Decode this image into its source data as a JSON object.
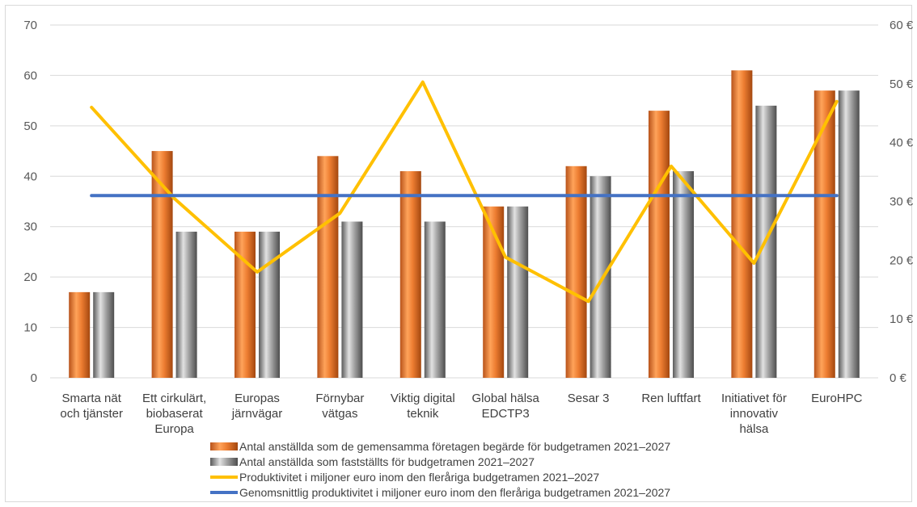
{
  "chart_data": {
    "type": "bar",
    "categories": [
      [
        "Smarta nät",
        "och tjänster"
      ],
      [
        "Ett cirkulärt,",
        "biobaserat",
        "Europa"
      ],
      [
        "Europas",
        "järnvägar"
      ],
      [
        "Förnybar",
        "vätgas"
      ],
      [
        "Viktig digital",
        "teknik"
      ],
      [
        "Global hälsa",
        "EDCTP3"
      ],
      [
        "Sesar 3"
      ],
      [
        "Ren luftfart"
      ],
      [
        "Initiativet för",
        "innovativ",
        "hälsa"
      ],
      [
        "EuroHPC"
      ]
    ],
    "series": [
      {
        "name": "Antal anställda som de gemensamma företagen begärde för budgetramen 2021–2027",
        "type": "bar",
        "axis": "left",
        "color": "#ed7d31",
        "values": [
          17,
          45,
          29,
          44,
          41,
          34,
          42,
          53,
          61,
          57
        ]
      },
      {
        "name": "Antal anställda som fastställts för budgetramen 2021–2027",
        "type": "bar",
        "axis": "left",
        "color": "#a5a5a5",
        "values": [
          17,
          29,
          29,
          31,
          31,
          34,
          40,
          41,
          54,
          57
        ]
      },
      {
        "name": "Produktivitet i miljoner euro inom den fleråriga budgetramen 2021–2027",
        "type": "line",
        "axis": "right",
        "color": "#ffc000",
        "values": [
          46,
          30.5,
          18,
          28,
          50.3,
          20.5,
          13,
          36,
          19.5,
          47
        ]
      },
      {
        "name": "Genomsnittlig produktivitet i miljoner euro inom den fleråriga budgetramen 2021–2027",
        "type": "line",
        "axis": "right",
        "color": "#4472c4",
        "values": [
          31,
          31,
          31,
          31,
          31,
          31,
          31,
          31,
          31,
          31
        ]
      }
    ],
    "y_left": {
      "min": 0,
      "max": 70,
      "ticks": [
        "0",
        "10",
        "20",
        "30",
        "40",
        "50",
        "60",
        "70"
      ]
    },
    "y_right": {
      "min": 0,
      "max": 60,
      "ticks": [
        "0 €",
        "10 €",
        "20 €",
        "30 €",
        "40 €",
        "50 €",
        "60 €"
      ]
    },
    "grid": true,
    "legend_position": "bottom"
  }
}
